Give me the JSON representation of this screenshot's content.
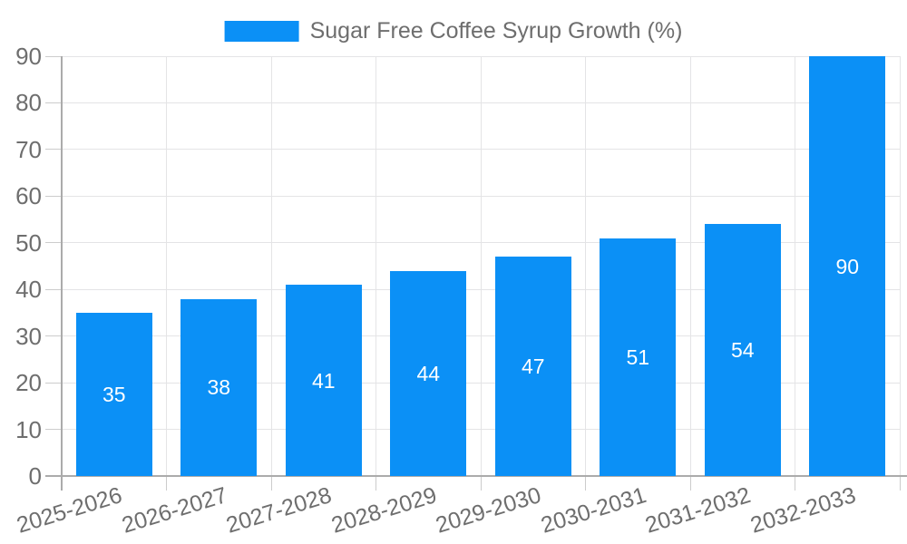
{
  "legend": {
    "label": "Sugar Free Coffee Syrup Growth (%)"
  },
  "chart_data": {
    "type": "bar",
    "title": "Sugar Free Coffee Syrup Growth (%)",
    "categories": [
      "2025-2026",
      "2026-2027",
      "2027-2028",
      "2028-2029",
      "2029-2030",
      "2030-2031",
      "2031-2032",
      "2032-2033"
    ],
    "values": [
      35,
      38,
      41,
      44,
      47,
      51,
      54,
      90
    ],
    "series": [
      {
        "name": "Sugar Free Coffee Syrup Growth (%)",
        "values": [
          35,
          38,
          41,
          44,
          47,
          51,
          54,
          90
        ]
      }
    ],
    "xlabel": "",
    "ylabel": "",
    "ylim": [
      0,
      90
    ],
    "yticks": [
      0,
      10,
      20,
      30,
      40,
      50,
      60,
      70,
      80,
      90
    ],
    "grid": true,
    "legend_position": "top-center",
    "x_tick_rotation_deg": -17,
    "bar_value_labels_visible": true,
    "colors": {
      "bar": "#0b90f6",
      "bar_label": "#ffffff",
      "axis_text": "#6e6e6e",
      "gridline": "#e4e4e6",
      "tick": "#cccccc",
      "axis_line": "#ababab",
      "background": "#ffffff"
    }
  }
}
